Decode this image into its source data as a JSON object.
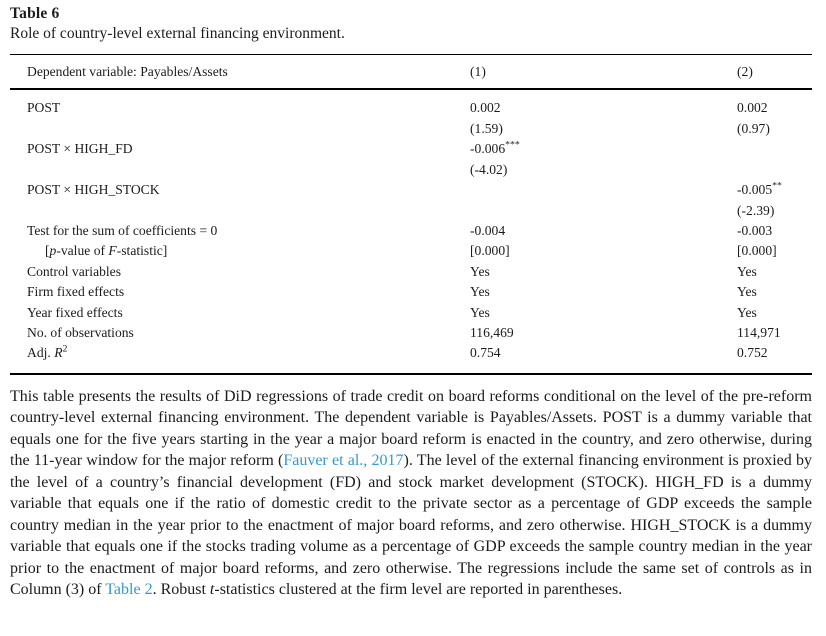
{
  "title": "Table 6",
  "subtitle": "Role of country-level external financing environment.",
  "colors": {
    "link": "#3399cc",
    "text": "#1c1c1c",
    "rule": "#000000"
  },
  "table": {
    "header": {
      "label": "Dependent variable: Payables/Assets",
      "col1": "(1)",
      "col2": "(2)"
    },
    "rows": [
      {
        "label": [
          {
            "t": "POST"
          }
        ],
        "col1": [
          {
            "t": "0.002"
          }
        ],
        "col2": [
          {
            "t": "0.002"
          }
        ]
      },
      {
        "label": [],
        "col1": [
          {
            "t": "(1.59)"
          }
        ],
        "col2": [
          {
            "t": "(0.97)"
          }
        ]
      },
      {
        "label": [
          {
            "t": "POST × HIGH_FD"
          }
        ],
        "col1": [
          {
            "t": "-0.006"
          },
          {
            "t": "***",
            "s": "sup"
          }
        ],
        "col2": []
      },
      {
        "label": [],
        "col1": [
          {
            "t": "(-4.02)"
          }
        ],
        "col2": []
      },
      {
        "label": [
          {
            "t": "POST × HIGH_STOCK"
          }
        ],
        "col1": [],
        "col2": [
          {
            "t": "-0.005"
          },
          {
            "t": "**",
            "s": "sup"
          }
        ]
      },
      {
        "label": [],
        "col1": [],
        "col2": [
          {
            "t": "(-2.39)"
          }
        ]
      },
      {
        "label": [
          {
            "t": "Test for the sum of coefficients = 0"
          }
        ],
        "col1": [
          {
            "t": "-0.004"
          }
        ],
        "col2": [
          {
            "t": "-0.003"
          }
        ]
      },
      {
        "indent": true,
        "label": [
          {
            "t": "["
          },
          {
            "t": "p",
            "s": "i"
          },
          {
            "t": "-value of "
          },
          {
            "t": "F",
            "s": "i"
          },
          {
            "t": "-statistic]"
          }
        ],
        "col1": [
          {
            "t": "[0.000]"
          }
        ],
        "col2": [
          {
            "t": "[0.000]"
          }
        ]
      },
      {
        "label": [
          {
            "t": "Control variables"
          }
        ],
        "col1": [
          {
            "t": "Yes"
          }
        ],
        "col2": [
          {
            "t": "Yes"
          }
        ]
      },
      {
        "label": [
          {
            "t": "Firm fixed effects"
          }
        ],
        "col1": [
          {
            "t": "Yes"
          }
        ],
        "col2": [
          {
            "t": "Yes"
          }
        ]
      },
      {
        "label": [
          {
            "t": "Year fixed effects"
          }
        ],
        "col1": [
          {
            "t": "Yes"
          }
        ],
        "col2": [
          {
            "t": "Yes"
          }
        ]
      },
      {
        "label": [
          {
            "t": "No. of observations"
          }
        ],
        "col1": [
          {
            "t": "116,469"
          }
        ],
        "col2": [
          {
            "t": "114,971"
          }
        ]
      },
      {
        "label": [
          {
            "t": "Adj. "
          },
          {
            "t": "R",
            "s": "i"
          },
          {
            "t": "2",
            "s": "sup"
          }
        ],
        "col1": [
          {
            "t": "0.754"
          }
        ],
        "col2": [
          {
            "t": "0.752"
          }
        ]
      }
    ]
  },
  "note": {
    "segments": [
      {
        "t": "This table presents the results of DiD regressions of trade credit on board reforms conditional on the level of the pre-reform country-level external financing environment. The dependent variable is Payables/Assets. POST is a dummy variable that equals one for the five years starting in the year a major board reform is enacted in the country, and zero otherwise, during the 11-year window for the major reform ("
      },
      {
        "t": "Fauver et al., 2017",
        "s": "link",
        "name": "fauver-et-al-2017-link"
      },
      {
        "t": "). The level of the external financing environment is proxied by the level of a country’s financial development (FD) and stock market development (STOCK). HIGH_FD is a dummy variable that equals one if the ratio of domestic credit to the private sector as a percentage of GDP exceeds the sample country median in the year prior to the enactment of major board reforms, and zero otherwise. HIGH_STOCK is a dummy variable that equals one if the stocks trading volume as a percentage of GDP exceeds the sample country median in the year prior to the enactment of major board reforms, and zero otherwise. The regressions include the same set of controls as in Column (3) of "
      },
      {
        "t": "Table 2",
        "s": "link",
        "name": "table-2-link"
      },
      {
        "t": ". Robust "
      },
      {
        "t": "t",
        "s": "i"
      },
      {
        "t": "-statistics clustered at the firm level are reported in parentheses."
      }
    ]
  }
}
